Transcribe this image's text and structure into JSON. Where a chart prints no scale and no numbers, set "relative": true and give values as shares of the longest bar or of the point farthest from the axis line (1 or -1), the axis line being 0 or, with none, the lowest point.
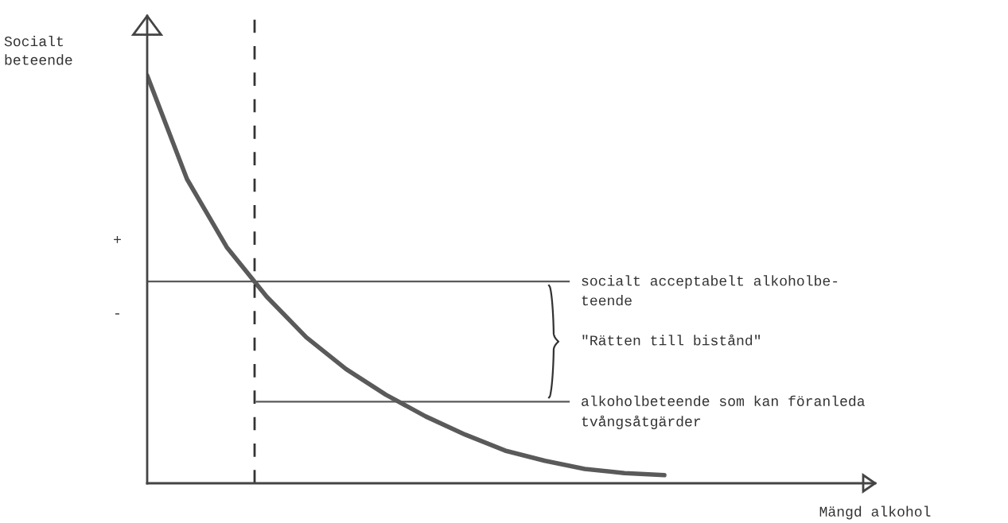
{
  "chart_data": {
    "type": "line",
    "relative": true,
    "xlabel": "Mängd alkohol",
    "categories": [
      null,
      null,
      null,
      null,
      null,
      null,
      null,
      null,
      null,
      null,
      null,
      null,
      null,
      null,
      null,
      null,
      null,
      null,
      null
    ],
    "series": [
      {
        "color": "#5a5a5a",
        "values": [
          1.0,
          0.746,
          0.579,
          0.458,
          0.358,
          0.28,
          0.217,
          0.164,
          0.119,
          0.08,
          0.055,
          0.035,
          0.025,
          0.02,
          null,
          null,
          null,
          null,
          null
        ]
      }
    ],
    "ref_lines": [
      {
        "axis": "y",
        "value": 0.495,
        "label": "socialt acceptabelt alkoholbe-\nteende",
        "color": "#5a5a5a"
      },
      {
        "axis": "y",
        "value": 0.2,
        "label": "alkoholbeteende som kan föranleda\ntvångsåtgärder",
        "color": "#5a5a5a"
      }
    ],
    "annotations": [
      "Socialt\nbeteende",
      "+",
      "-",
      "\"Rätten till bistånd\""
    ],
    "tick_labels": false,
    "marker": "none",
    "line_style": "solid"
  }
}
